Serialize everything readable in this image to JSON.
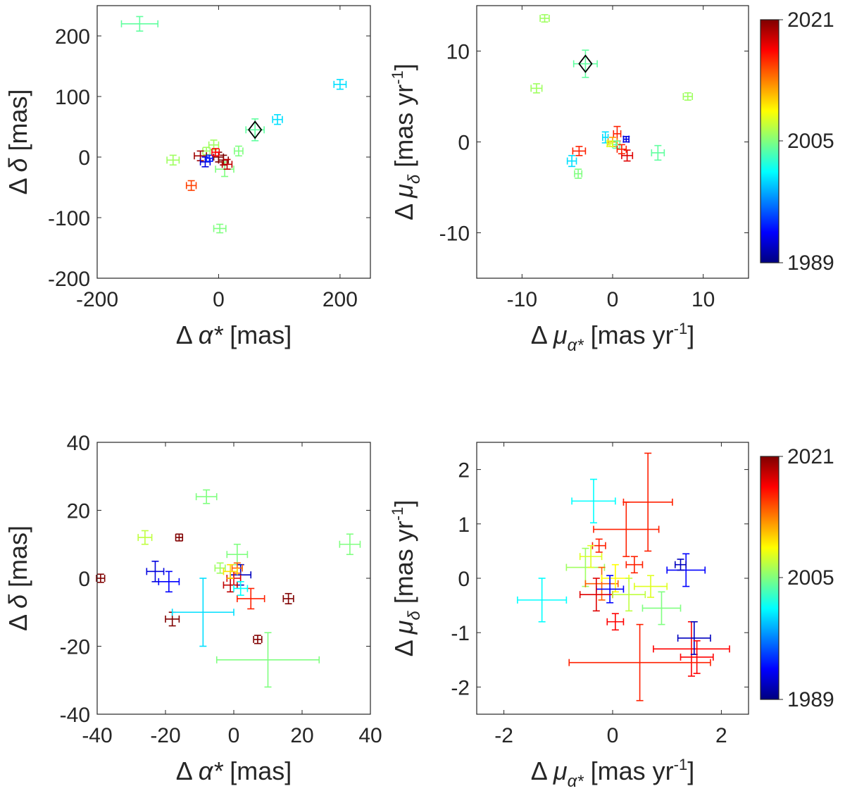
{
  "colorbar": {
    "min_year": 1989,
    "max_year": 2021,
    "tick_labels": [
      "2021",
      "2005",
      "1989"
    ]
  },
  "chart_data": [
    {
      "type": "scatter",
      "panel": "top-left",
      "xlabel": "Δ α* [mas]",
      "ylabel": "Δ δ [mas]",
      "xlim": [
        -200,
        250
      ],
      "ylim": [
        -200,
        250
      ],
      "xticks": [
        -200,
        0,
        200
      ],
      "yticks": [
        -200,
        -100,
        0,
        100,
        200
      ],
      "xtick_labels": [
        "-200",
        "0",
        "200"
      ],
      "ytick_labels": [
        "-200",
        "-100",
        "0",
        "100",
        "200"
      ],
      "points": [
        {
          "x": -130,
          "y": 220,
          "xerr": 30,
          "yerr": 12,
          "year": 2004
        },
        {
          "x": 200,
          "y": 120,
          "xerr": 10,
          "yerr": 8,
          "year": 2000
        },
        {
          "x": 97,
          "y": 62,
          "xerr": 8,
          "yerr": 8,
          "year": 2000
        },
        {
          "x": 60,
          "y": 45,
          "xerr": 15,
          "yerr": 18,
          "year": 2004
        },
        {
          "x": 33,
          "y": 10,
          "xerr": 7,
          "yerr": 8,
          "year": 2005
        },
        {
          "x": -75,
          "y": -5,
          "xerr": 10,
          "yerr": 8,
          "year": 2006
        },
        {
          "x": 2,
          "y": -118,
          "xerr": 10,
          "yerr": 7,
          "year": 2005
        },
        {
          "x": -45,
          "y": -47,
          "xerr": 8,
          "yerr": 8,
          "year": 2015
        },
        {
          "x": 10,
          "y": -20,
          "xerr": 15,
          "yerr": 12,
          "year": 2005
        },
        {
          "x": -8,
          "y": 20,
          "xerr": 8,
          "yerr": 8,
          "year": 2006
        },
        {
          "x": -20,
          "y": 10,
          "xerr": 6,
          "yerr": 6,
          "year": 2006
        },
        {
          "x": -30,
          "y": 2,
          "xerr": 10,
          "yerr": 8,
          "year": 2020
        },
        {
          "x": -22,
          "y": -8,
          "xerr": 8,
          "yerr": 8,
          "year": 1992
        },
        {
          "x": -15,
          "y": -2,
          "xerr": 5,
          "yerr": 5,
          "year": 1994
        },
        {
          "x": 0,
          "y": 0,
          "xerr": 8,
          "yerr": 8,
          "year": 2021
        },
        {
          "x": 8,
          "y": -5,
          "xerr": 8,
          "yerr": 8,
          "year": 2021
        },
        {
          "x": 14,
          "y": -12,
          "xerr": 8,
          "yerr": 8,
          "year": 2019
        },
        {
          "x": -5,
          "y": 8,
          "xerr": 6,
          "yerr": 6,
          "year": 2017
        }
      ],
      "marker": {
        "x": 60,
        "y": 45
      }
    },
    {
      "type": "scatter",
      "panel": "top-right",
      "xlabel": "Δ μα* [mas yr-1]",
      "ylabel": "Δ μδ [mas yr-1]",
      "xlim": [
        -15,
        15
      ],
      "ylim": [
        -15,
        15
      ],
      "xticks": [
        -10,
        0,
        10
      ],
      "yticks": [
        -10,
        0,
        10
      ],
      "xtick_labels": [
        "-10",
        "0",
        "10"
      ],
      "ytick_labels": [
        "-10",
        "0",
        "10"
      ],
      "points": [
        {
          "x": -7.5,
          "y": 13.6,
          "xerr": 0.5,
          "yerr": 0.4,
          "year": 2006
        },
        {
          "x": -3.0,
          "y": 8.6,
          "xerr": 1.3,
          "yerr": 1.5,
          "year": 2004
        },
        {
          "x": -8.4,
          "y": 5.9,
          "xerr": 0.6,
          "yerr": 0.5,
          "year": 2006
        },
        {
          "x": 8.3,
          "y": 5.0,
          "xerr": 0.5,
          "yerr": 0.4,
          "year": 2006
        },
        {
          "x": 5.0,
          "y": -1.2,
          "xerr": 0.7,
          "yerr": 0.8,
          "year": 2004
        },
        {
          "x": -3.7,
          "y": -1.0,
          "xerr": 0.7,
          "yerr": 0.5,
          "year": 2016
        },
        {
          "x": -4.5,
          "y": -2.1,
          "xerr": 0.5,
          "yerr": 0.6,
          "year": 2000
        },
        {
          "x": -3.8,
          "y": -3.5,
          "xerr": 0.4,
          "yerr": 0.5,
          "year": 2005
        },
        {
          "x": -0.8,
          "y": 0.5,
          "xerr": 0.3,
          "yerr": 0.6,
          "year": 2000
        },
        {
          "x": 1.5,
          "y": 0.3,
          "xerr": 0.3,
          "yerr": 0.3,
          "year": 1992
        },
        {
          "x": 0.5,
          "y": 0.9,
          "xerr": 0.4,
          "yerr": 0.8,
          "year": 2016
        },
        {
          "x": 1.6,
          "y": -1.5,
          "xerr": 0.6,
          "yerr": 0.6,
          "year": 2018
        },
        {
          "x": 0.0,
          "y": 0.0,
          "xerr": 0.5,
          "yerr": 0.5,
          "year": 2012
        },
        {
          "x": 0.4,
          "y": -0.3,
          "xerr": 0.4,
          "yerr": 0.4,
          "year": 2004
        },
        {
          "x": -0.3,
          "y": -0.2,
          "xerr": 0.3,
          "yerr": 0.3,
          "year": 2008
        },
        {
          "x": 1.0,
          "y": -0.8,
          "xerr": 0.5,
          "yerr": 0.5,
          "year": 2016
        }
      ],
      "marker": {
        "x": -3.0,
        "y": 8.6
      }
    },
    {
      "type": "scatter",
      "panel": "bottom-left",
      "xlabel": "Δ α* [mas]",
      "ylabel": "Δ δ [mas]",
      "xlim": [
        -40,
        40
      ],
      "ylim": [
        -40,
        40
      ],
      "xticks": [
        -40,
        -20,
        0,
        20,
        40
      ],
      "yticks": [
        -40,
        -20,
        0,
        20,
        40
      ],
      "xtick_labels": [
        "-40",
        "-20",
        "0",
        "20",
        "40"
      ],
      "ytick_labels": [
        "-40",
        "-20",
        "0",
        "20",
        "40"
      ],
      "points": [
        {
          "x": -8,
          "y": 24,
          "xerr": 3,
          "yerr": 2,
          "year": 2005
        },
        {
          "x": -26,
          "y": 12,
          "xerr": 2,
          "yerr": 2,
          "year": 2007
        },
        {
          "x": -16,
          "y": 12,
          "xerr": 1,
          "yerr": 1,
          "year": 2021
        },
        {
          "x": 34,
          "y": 10,
          "xerr": 3,
          "yerr": 3,
          "year": 2005
        },
        {
          "x": 1,
          "y": 7,
          "xerr": 3,
          "yerr": 3,
          "year": 2005
        },
        {
          "x": -39,
          "y": 0,
          "xerr": 1.2,
          "yerr": 1.2,
          "year": 2021
        },
        {
          "x": -23,
          "y": 2,
          "xerr": 2.5,
          "yerr": 3,
          "year": 1992
        },
        {
          "x": -19,
          "y": -1,
          "xerr": 3,
          "yerr": 3,
          "year": 1993
        },
        {
          "x": -18,
          "y": -12,
          "xerr": 2,
          "yerr": 2,
          "year": 2021
        },
        {
          "x": -4,
          "y": 3,
          "xerr": 1.5,
          "yerr": 1.5,
          "year": 2006
        },
        {
          "x": 2,
          "y": 1,
          "xerr": 3,
          "yerr": 3,
          "year": 1991
        },
        {
          "x": 0,
          "y": 0,
          "xerr": 2,
          "yerr": 2,
          "year": 2018
        },
        {
          "x": -1,
          "y": -2,
          "xerr": 2,
          "yerr": 2,
          "year": 2019
        },
        {
          "x": 1,
          "y": 3,
          "xerr": 1.5,
          "yerr": 1.5,
          "year": 2014
        },
        {
          "x": 5,
          "y": -6,
          "xerr": 4,
          "yerr": 3,
          "year": 2016
        },
        {
          "x": 16,
          "y": -6,
          "xerr": 1.5,
          "yerr": 1.5,
          "year": 2021
        },
        {
          "x": -9,
          "y": -10,
          "xerr": 9,
          "yerr": 10,
          "year": 2000
        },
        {
          "x": 7,
          "y": -18,
          "xerr": 1.2,
          "yerr": 1.2,
          "year": 2021
        },
        {
          "x": 10,
          "y": -24,
          "xerr": 15,
          "yerr": 8,
          "year": 2005
        },
        {
          "x": 2,
          "y": -3,
          "xerr": 2,
          "yerr": 2,
          "year": 2001
        },
        {
          "x": -1,
          "y": 2,
          "xerr": 2,
          "yerr": 2,
          "year": 2010
        }
      ]
    },
    {
      "type": "scatter",
      "panel": "bottom-right",
      "xlabel": "Δ μα* [mas yr-1]",
      "ylabel": "Δ μδ [mas yr-1]",
      "xlim": [
        -2.5,
        2.5
      ],
      "ylim": [
        -2.5,
        2.5
      ],
      "xticks": [
        -2,
        0,
        2
      ],
      "yticks": [
        -2,
        -1,
        0,
        1,
        2
      ],
      "xtick_labels": [
        "-2",
        "0",
        "2"
      ],
      "ytick_labels": [
        "-2",
        "-1",
        "0",
        "1",
        "2"
      ],
      "points": [
        {
          "x": -0.35,
          "y": 1.42,
          "xerr": 0.4,
          "yerr": 0.4,
          "year": 2001
        },
        {
          "x": 0.65,
          "y": 1.4,
          "xerr": 0.45,
          "yerr": 0.9,
          "year": 2016
        },
        {
          "x": 0.25,
          "y": 0.9,
          "xerr": 0.6,
          "yerr": 0.5,
          "year": 2016
        },
        {
          "x": -1.3,
          "y": -0.4,
          "xerr": 0.45,
          "yerr": 0.4,
          "year": 2001
        },
        {
          "x": 1.35,
          "y": 0.15,
          "xerr": 0.35,
          "yerr": 0.3,
          "year": 1993
        },
        {
          "x": 1.25,
          "y": 0.25,
          "xerr": 0.1,
          "yerr": 0.1,
          "year": 1991
        },
        {
          "x": 1.45,
          "y": -1.3,
          "xerr": 0.7,
          "yerr": 0.5,
          "year": 2017
        },
        {
          "x": 1.5,
          "y": -1.1,
          "xerr": 0.3,
          "yerr": 0.3,
          "year": 1991
        },
        {
          "x": 1.55,
          "y": -1.45,
          "xerr": 0.3,
          "yerr": 0.3,
          "year": 2017
        },
        {
          "x": 0.5,
          "y": -1.55,
          "xerr": 1.3,
          "yerr": 0.7,
          "year": 2016
        },
        {
          "x": 0.9,
          "y": -0.55,
          "xerr": 0.35,
          "yerr": 0.3,
          "year": 2005
        },
        {
          "x": 0.7,
          "y": -0.15,
          "xerr": 0.3,
          "yerr": 0.2,
          "year": 2008
        },
        {
          "x": 0.4,
          "y": 0.25,
          "xerr": 0.15,
          "yerr": 0.15,
          "year": 2016
        },
        {
          "x": -0.25,
          "y": 0.6,
          "xerr": 0.12,
          "yerr": 0.12,
          "year": 2016
        },
        {
          "x": -0.5,
          "y": 0.2,
          "xerr": 0.35,
          "yerr": 0.35,
          "year": 2006
        },
        {
          "x": -0.2,
          "y": -0.1,
          "xerr": 0.3,
          "yerr": 0.3,
          "year": 2014
        },
        {
          "x": 0.05,
          "y": 0.0,
          "xerr": 0.25,
          "yerr": 0.25,
          "year": 2009
        },
        {
          "x": -0.05,
          "y": -0.2,
          "xerr": 0.25,
          "yerr": 0.25,
          "year": 1993
        },
        {
          "x": 0.05,
          "y": -0.8,
          "xerr": 0.15,
          "yerr": 0.15,
          "year": 2017
        },
        {
          "x": -0.3,
          "y": -0.3,
          "xerr": 0.3,
          "yerr": 0.3,
          "year": 2018
        },
        {
          "x": 0.3,
          "y": -0.3,
          "xerr": 0.3,
          "yerr": 0.3,
          "year": 2007
        },
        {
          "x": -0.4,
          "y": 0.4,
          "xerr": 0.2,
          "yerr": 0.2,
          "year": 2008
        }
      ]
    }
  ]
}
